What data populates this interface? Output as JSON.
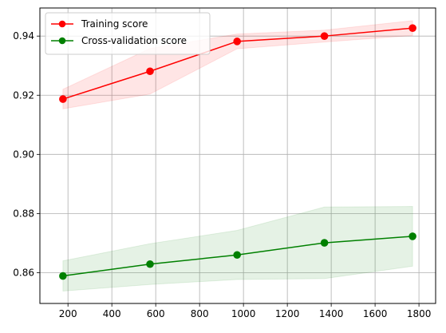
{
  "chart_data": {
    "type": "line",
    "title": "",
    "xlabel": "",
    "ylabel": "",
    "x": [
      177,
      574,
      971,
      1369,
      1771
    ],
    "xlim": [
      72,
      1876
    ],
    "ylim": [
      0.8496,
      0.9495
    ],
    "xticks": [
      200,
      400,
      600,
      800,
      1000,
      1200,
      1400,
      1600,
      1800
    ],
    "yticks": [
      0.86,
      0.88,
      0.9,
      0.92,
      0.94
    ],
    "grid": true,
    "legend_position": "top-left",
    "series": [
      {
        "name": "Training score",
        "color": "#ff0000",
        "band_color": "#ff0000",
        "values": [
          0.9187,
          0.9281,
          0.9382,
          0.94,
          0.9427
        ],
        "band_lower": [
          0.9154,
          0.9204,
          0.9357,
          0.938,
          0.9402
        ],
        "band_upper": [
          0.922,
          0.9358,
          0.9407,
          0.942,
          0.9452
        ]
      },
      {
        "name": "Cross-validation score",
        "color": "#008000",
        "band_color": "#008000",
        "values": [
          0.8589,
          0.8629,
          0.866,
          0.8701,
          0.8723
        ],
        "band_lower": [
          0.8538,
          0.856,
          0.8577,
          0.858,
          0.8622
        ],
        "band_upper": [
          0.864,
          0.8698,
          0.8743,
          0.8822,
          0.8824
        ]
      }
    ]
  }
}
